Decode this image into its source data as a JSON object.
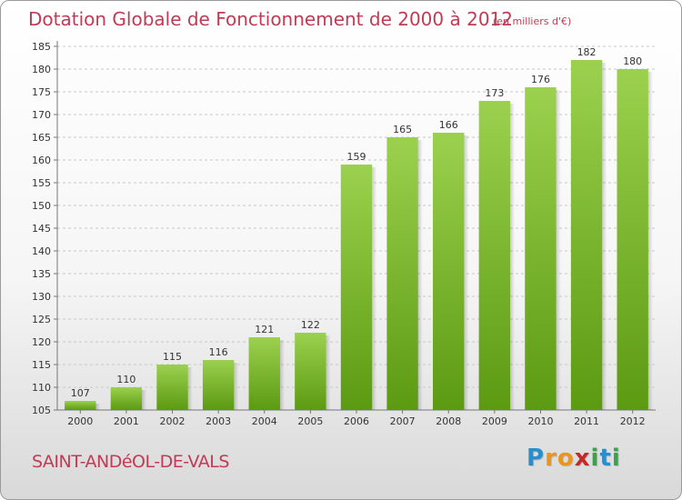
{
  "header": {
    "title": "Dotation Globale de Fonctionnement de 2000 à 2012",
    "unit": "(en milliers d'€)"
  },
  "footer": {
    "commune": "SAINT-ANDéOL-DE-VALS",
    "logo_letters": [
      "P",
      "r",
      "o",
      "x",
      "i",
      "t",
      "i"
    ],
    "logo_colors": [
      "#2b8ecc",
      "#e8961e",
      "#e8961e",
      "#c32a2a",
      "#3aa24a",
      "#2b8ecc",
      "#3aa24a"
    ]
  },
  "colors": {
    "bar_top": "#9bd14e",
    "bar_bottom": "#5c9a12",
    "grid": "#c8c8c8",
    "axis_text": "#333333",
    "title": "#c23b54"
  },
  "chart_data": {
    "type": "bar",
    "categories": [
      "2000",
      "2001",
      "2002",
      "2003",
      "2004",
      "2005",
      "2006",
      "2007",
      "2008",
      "2009",
      "2010",
      "2011",
      "2012"
    ],
    "values": [
      107,
      110,
      115,
      116,
      121,
      122,
      159,
      165,
      166,
      173,
      176,
      182,
      180
    ],
    "ylim": [
      105,
      185
    ],
    "yticks": [
      105,
      110,
      115,
      120,
      125,
      130,
      135,
      140,
      145,
      150,
      155,
      160,
      165,
      170,
      175,
      180,
      185
    ],
    "grid": true,
    "data_labels": true
  }
}
